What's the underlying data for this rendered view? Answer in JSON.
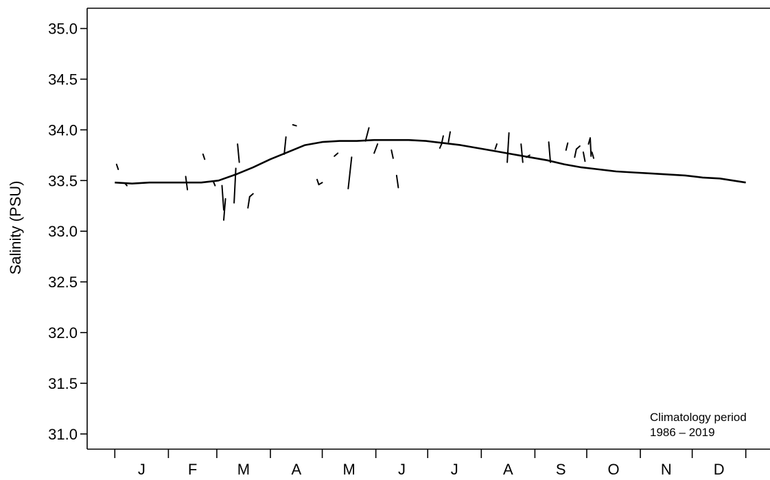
{
  "chart_data": {
    "type": "line",
    "ylabel": "Salinity (PSU)",
    "ylim": [
      30.85,
      35.2
    ],
    "yticks": [
      31.0,
      31.5,
      32.0,
      32.5,
      33.0,
      33.5,
      34.0,
      34.5,
      35.0
    ],
    "ytick_labels": [
      "31.0",
      "31.5",
      "32.0",
      "32.5",
      "33.0",
      "33.5",
      "34.0",
      "34.5",
      "35.0"
    ],
    "x_unit": "day of year",
    "xlim": [
      -16,
      379
    ],
    "month_boundaries": [
      0,
      31,
      59,
      90,
      120,
      151,
      181,
      212,
      243,
      273,
      304,
      334,
      365
    ],
    "month_labels": [
      "J",
      "F",
      "M",
      "A",
      "M",
      "J",
      "J",
      "A",
      "S",
      "O",
      "N",
      "D"
    ],
    "grid": false,
    "annotation": {
      "line1": "Climatology period",
      "line2": "1986 – 2019"
    },
    "climatology": {
      "x": [
        0,
        10,
        20,
        30,
        40,
        50,
        60,
        70,
        80,
        90,
        100,
        110,
        120,
        130,
        140,
        150,
        160,
        170,
        180,
        190,
        200,
        210,
        220,
        230,
        240,
        250,
        260,
        270,
        280,
        290,
        300,
        310,
        320,
        330,
        340,
        350,
        365
      ],
      "y": [
        33.48,
        33.47,
        33.48,
        33.48,
        33.48,
        33.48,
        33.5,
        33.56,
        33.63,
        33.71,
        33.78,
        33.85,
        33.88,
        33.89,
        33.89,
        33.9,
        33.9,
        33.9,
        33.89,
        33.87,
        33.85,
        33.82,
        33.79,
        33.76,
        33.73,
        33.7,
        33.66,
        33.63,
        33.61,
        33.59,
        33.58,
        33.57,
        33.56,
        33.55,
        33.53,
        33.52,
        33.48
      ]
    },
    "observations": [
      {
        "x1": 1,
        "y1": 33.66,
        "x2": 2,
        "y2": 33.61
      },
      {
        "x1": 6,
        "y1": 33.47,
        "x2": 7,
        "y2": 33.45
      },
      {
        "x1": 41,
        "y1": 33.54,
        "x2": 42,
        "y2": 33.41
      },
      {
        "x1": 51,
        "y1": 33.76,
        "x2": 52,
        "y2": 33.71
      },
      {
        "x1": 57,
        "y1": 33.49,
        "x2": 58,
        "y2": 33.45
      },
      {
        "x1": 62,
        "y1": 33.45,
        "x2": 63,
        "y2": 33.21
      },
      {
        "x1": 63,
        "y1": 33.11,
        "x2": 64,
        "y2": 33.32
      },
      {
        "x1": 69,
        "y1": 33.28,
        "x2": 70,
        "y2": 33.62
      },
      {
        "x1": 71,
        "y1": 33.86,
        "x2": 72,
        "y2": 33.68
      },
      {
        "x1": 77,
        "y1": 33.23,
        "x2": 78,
        "y2": 33.34
      },
      {
        "x1": 78,
        "y1": 33.34,
        "x2": 80,
        "y2": 33.37
      },
      {
        "x1": 98,
        "y1": 33.76,
        "x2": 99,
        "y2": 33.93
      },
      {
        "x1": 103,
        "y1": 34.05,
        "x2": 105,
        "y2": 34.04
      },
      {
        "x1": 117,
        "y1": 33.51,
        "x2": 118,
        "y2": 33.46
      },
      {
        "x1": 118,
        "y1": 33.46,
        "x2": 120,
        "y2": 33.48
      },
      {
        "x1": 127,
        "y1": 33.74,
        "x2": 129,
        "y2": 33.77
      },
      {
        "x1": 135,
        "y1": 33.42,
        "x2": 137,
        "y2": 33.73
      },
      {
        "x1": 145,
        "y1": 33.89,
        "x2": 147,
        "y2": 34.02
      },
      {
        "x1": 150,
        "y1": 33.77,
        "x2": 152,
        "y2": 33.86
      },
      {
        "x1": 160,
        "y1": 33.8,
        "x2": 161,
        "y2": 33.72
      },
      {
        "x1": 163,
        "y1": 33.55,
        "x2": 164,
        "y2": 33.43
      },
      {
        "x1": 188,
        "y1": 33.82,
        "x2": 189,
        "y2": 33.86
      },
      {
        "x1": 189,
        "y1": 33.86,
        "x2": 190,
        "y2": 33.94
      },
      {
        "x1": 193,
        "y1": 33.88,
        "x2": 194,
        "y2": 33.98
      },
      {
        "x1": 220,
        "y1": 33.81,
        "x2": 221,
        "y2": 33.86
      },
      {
        "x1": 227,
        "y1": 33.68,
        "x2": 228,
        "y2": 33.97
      },
      {
        "x1": 235,
        "y1": 33.86,
        "x2": 236,
        "y2": 33.68
      },
      {
        "x1": 238,
        "y1": 33.73,
        "x2": 240,
        "y2": 33.75
      },
      {
        "x1": 251,
        "y1": 33.88,
        "x2": 252,
        "y2": 33.68
      },
      {
        "x1": 261,
        "y1": 33.8,
        "x2": 262,
        "y2": 33.87
      },
      {
        "x1": 266,
        "y1": 33.73,
        "x2": 267,
        "y2": 33.81
      },
      {
        "x1": 267,
        "y1": 33.81,
        "x2": 269,
        "y2": 33.84
      },
      {
        "x1": 271,
        "y1": 33.78,
        "x2": 272,
        "y2": 33.69
      },
      {
        "x1": 274,
        "y1": 33.86,
        "x2": 275,
        "y2": 33.92
      },
      {
        "x1": 275,
        "y1": 33.92,
        "x2": 275.5,
        "y2": 33.74
      },
      {
        "x1": 276,
        "y1": 33.78,
        "x2": 277,
        "y2": 33.72
      }
    ]
  }
}
